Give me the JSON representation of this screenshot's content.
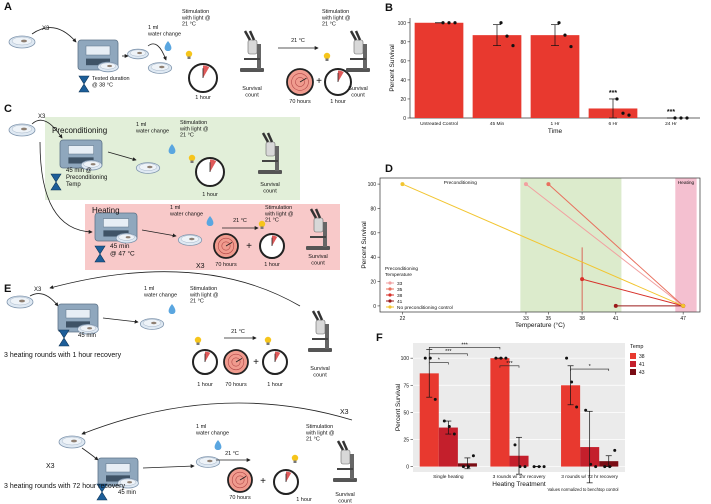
{
  "panels": {
    "a": {
      "texts": [
        [
          "A"
        ],
        [
          "X3"
        ],
        [
          "Tested duration",
          "@ 38 °C"
        ],
        [
          "1 ml",
          "water change"
        ],
        [
          "Stimulation",
          "with light @",
          "21 °C"
        ],
        [
          "1 hour"
        ],
        [
          "Survival",
          "count"
        ],
        [
          "21 °C"
        ],
        [
          "70 hours"
        ],
        [
          "+"
        ],
        [
          "Stimulation",
          "with light @",
          "21 °C"
        ],
        [
          "1 hour"
        ],
        [
          "Survival",
          "count"
        ]
      ]
    },
    "c": {
      "texts": [
        [
          "C"
        ],
        [
          "X3"
        ],
        [
          "Preconditioning"
        ],
        [
          "1 ml",
          "water change"
        ],
        [
          "Stimulation",
          "with light @",
          "21 °C"
        ],
        [
          "45 min @",
          "Preconditioning",
          "Temp"
        ],
        [
          "1 hour"
        ],
        [
          "Survival",
          "count"
        ],
        [
          "Heating"
        ],
        [
          "1 ml",
          "water change"
        ],
        [
          "Stimulation",
          "with light @",
          "21 °C"
        ],
        [
          "45 min",
          "@ 47 °C"
        ],
        [
          "21 °C"
        ],
        [
          "70 hours"
        ],
        [
          "+"
        ],
        [
          "1 hour"
        ],
        [
          "Survival",
          "count"
        ]
      ]
    },
    "e": {
      "texts": [
        [
          "E"
        ],
        [
          "X3"
        ],
        [
          "45 min"
        ],
        [
          "1 ml",
          "water change"
        ],
        [
          "Stimulation",
          "with light @",
          "21 °C"
        ],
        [
          "21 °C"
        ],
        [
          "1 hour"
        ],
        [
          "70 hours"
        ],
        [
          "+"
        ],
        [
          "1 hour"
        ],
        [
          "Survival",
          "count"
        ],
        [
          "X3"
        ],
        [
          "3 heating rounds with 1 hour recovery"
        ],
        [
          "X3"
        ],
        [
          "45 min"
        ],
        [
          "1 ml",
          "water change"
        ],
        [
          "21 °C"
        ],
        [
          "70 hours"
        ],
        [
          "+"
        ],
        [
          "1 hour"
        ],
        [
          "Stimulation",
          "with light @",
          "21 °C"
        ],
        [
          "Survival",
          "count"
        ],
        [
          "X3"
        ],
        [
          "3 heating rounds with 72 hour recovery"
        ]
      ]
    }
  },
  "chart_data": [
    {
      "type": "bar",
      "label": "B",
      "categories": [
        "Untreated Control",
        "45 Min",
        "1 Hr",
        "6 Hr",
        "24 Hr"
      ],
      "values": [
        100,
        87,
        87,
        10,
        0
      ],
      "errors": [
        0,
        11,
        11,
        10,
        0
      ],
      "points": [
        [
          100,
          100,
          100
        ],
        [
          100,
          86,
          76
        ],
        [
          100,
          87,
          75
        ],
        [
          20,
          5,
          3
        ],
        [
          0,
          0,
          0
        ]
      ],
      "color": "#e8392f",
      "xlabel": "Time",
      "ylabel": "Percent Survival",
      "ylim": [
        0,
        105
      ],
      "yticks": [
        0,
        20,
        40,
        60,
        80,
        100
      ],
      "annotations": [
        "***",
        "***"
      ]
    },
    {
      "type": "line",
      "label": "D",
      "xlabel": "Temperature (°C)",
      "ylabel": "Percent Survival",
      "xlim": [
        20,
        48.5
      ],
      "xticks": [
        22,
        33,
        35,
        38,
        41,
        47
      ],
      "ylim": [
        -5,
        105
      ],
      "yticks": [
        0,
        20,
        40,
        60,
        80,
        100
      ],
      "regions": [
        {
          "label": "Preconditioning",
          "range": [
            32.5,
            41.5
          ],
          "color": "#dcebcc"
        },
        {
          "label": "Heating",
          "range": [
            46.3,
            48.2
          ],
          "color": "#f4c0d0"
        }
      ],
      "legend_title": [
        "Preconditioning",
        "Temperature"
      ],
      "series": [
        {
          "name": "33",
          "color": "#f2a0a0",
          "x": [
            33,
            47
          ],
          "values": [
            100,
            0
          ]
        },
        {
          "name": "35",
          "color": "#e8705e",
          "x": [
            35,
            47
          ],
          "values": [
            100,
            0
          ]
        },
        {
          "name": "38",
          "color": "#d7312a",
          "x": [
            38,
            47
          ],
          "values": [
            22,
            0
          ],
          "errors": [
            26,
            0
          ]
        },
        {
          "name": "41",
          "color": "#9b1a1a",
          "x": [
            41,
            47
          ],
          "values": [
            0,
            0
          ]
        },
        {
          "name": "No preconditioning control",
          "color": "#f2c530",
          "x": [
            22,
            47
          ],
          "values": [
            100,
            0
          ]
        }
      ]
    },
    {
      "type": "grouped_bar",
      "label": "F",
      "categories": [
        "Single heating",
        "3 rounds w/ 1hr recovery",
        "3 rounds w/ 72 hr recovery"
      ],
      "series": [
        {
          "name": "38",
          "color": "#e8392f",
          "values": [
            86,
            100,
            75
          ],
          "errors": [
            22,
            0,
            18
          ],
          "points": [
            [
              100,
              100,
              62
            ],
            [
              100,
              100,
              100
            ],
            [
              100,
              78,
              55
            ]
          ]
        },
        {
          "name": "41",
          "color": "#c41f2c",
          "values": [
            36,
            10,
            18
          ],
          "errors": [
            6,
            17,
            33
          ],
          "points": [
            [
              42,
              37,
              30
            ],
            [
              20,
              0,
              0
            ],
            [
              52,
              2,
              0
            ]
          ]
        },
        {
          "name": "43",
          "color": "#7a0c14",
          "values": [
            3,
            0,
            5
          ],
          "errors": [
            5,
            0,
            5
          ],
          "points": [
            [
              0,
              0,
              10
            ],
            [
              0,
              0,
              0
            ],
            [
              0,
              0,
              15
            ]
          ]
        }
      ],
      "legend_title": "Temp",
      "xlabel": "Heating Treatment",
      "ylabel": "Percent Survival",
      "note": "Values normalized to benchtop control",
      "ylim": [
        -5,
        114
      ],
      "yticks": [
        0,
        25,
        50,
        75,
        100
      ],
      "annotations": [
        "*",
        "***",
        "***",
        "***",
        "*"
      ]
    }
  ]
}
